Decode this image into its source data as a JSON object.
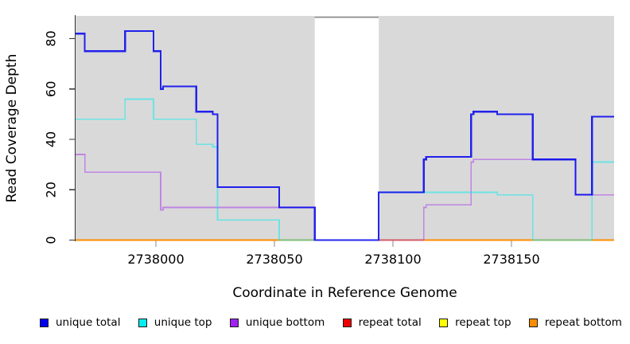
{
  "chart_data": {
    "type": "line",
    "subtype": "step",
    "title": "",
    "xlabel": "Coordinate in Reference Genome",
    "ylabel": "Read Coverage Depth",
    "x_domain": [
      2737966,
      2738193
    ],
    "y_domain": [
      0,
      89
    ],
    "x_ticks": [
      2738000,
      2738050,
      2738100,
      2738150
    ],
    "y_ticks": [
      0,
      20,
      40,
      60,
      80
    ],
    "grid": false,
    "legend_position": "bottom",
    "plot_background": "#d9d9d9",
    "page_background": "#ffffff",
    "axis_line_color": "#333333",
    "x_tick_color": "#888888",
    "no_data_region": {
      "x_start": 2738067,
      "x_end": 2738094,
      "fill": "#ffffff",
      "top_line_color": "#8f8f8f"
    },
    "legend": [
      {
        "label": "unique total",
        "color": "#0000EE"
      },
      {
        "label": "unique top",
        "color": "#00EEEE"
      },
      {
        "label": "unique bottom",
        "color": "#A020F0"
      },
      {
        "label": "repeat total",
        "color": "#EE0000"
      },
      {
        "label": "repeat top",
        "color": "#FFFF00"
      },
      {
        "label": "repeat bottom",
        "color": "#FF8C00"
      }
    ],
    "series": [
      {
        "name": "repeat total",
        "color": "#EE0000",
        "opacity": 1,
        "stroke_width": 1.5,
        "points": [
          [
            2737966,
            0
          ],
          [
            2738067,
            null
          ],
          [
            2738094,
            0
          ]
        ]
      },
      {
        "name": "repeat top",
        "color": "#FFFF00",
        "opacity": 1,
        "stroke_width": 1.5,
        "points": [
          [
            2737966,
            0
          ],
          [
            2738067,
            null
          ],
          [
            2738094,
            0
          ]
        ]
      },
      {
        "name": "repeat bottom",
        "color": "#FF8C00",
        "opacity": 1,
        "stroke_width": 2,
        "points": [
          [
            2737966,
            0
          ],
          [
            2738067,
            null
          ],
          [
            2738094,
            0
          ]
        ]
      },
      {
        "name": "unique bottom",
        "color": "#A020F0",
        "opacity": 0.45,
        "stroke_width": 1.7,
        "points": [
          [
            2737966,
            34
          ],
          [
            2737970,
            27
          ],
          [
            2738002,
            12
          ],
          [
            2738003,
            13
          ],
          [
            2738067,
            null
          ],
          [
            2738094,
            0
          ],
          [
            2738113,
            13
          ],
          [
            2738114,
            14
          ],
          [
            2738133,
            31
          ],
          [
            2738134,
            32
          ],
          [
            2738177,
            18
          ]
        ]
      },
      {
        "name": "unique top",
        "color": "#00EEEE",
        "opacity": 0.5,
        "stroke_width": 1.7,
        "points": [
          [
            2737966,
            48
          ],
          [
            2737987,
            56
          ],
          [
            2737999,
            48
          ],
          [
            2738017,
            38
          ],
          [
            2738024,
            37
          ],
          [
            2738026,
            8
          ],
          [
            2738052,
            0
          ],
          [
            2738067,
            null
          ],
          [
            2738094,
            19
          ],
          [
            2738144,
            18
          ],
          [
            2738159,
            0
          ],
          [
            2738184,
            31
          ]
        ]
      },
      {
        "name": "unique total",
        "color": "#0000EE",
        "opacity": 0.85,
        "stroke_width": 2.2,
        "points": [
          [
            2737966,
            82
          ],
          [
            2737970,
            75
          ],
          [
            2737987,
            83
          ],
          [
            2737999,
            75
          ],
          [
            2738002,
            60
          ],
          [
            2738003,
            61
          ],
          [
            2738017,
            51
          ],
          [
            2738024,
            50
          ],
          [
            2738026,
            21
          ],
          [
            2738052,
            13
          ],
          [
            2738067,
            0
          ],
          [
            2738094,
            19
          ],
          [
            2738113,
            32
          ],
          [
            2738114,
            33
          ],
          [
            2738133,
            50
          ],
          [
            2738134,
            51
          ],
          [
            2738144,
            50
          ],
          [
            2738159,
            32
          ],
          [
            2738177,
            18
          ],
          [
            2738184,
            49
          ]
        ]
      }
    ]
  }
}
